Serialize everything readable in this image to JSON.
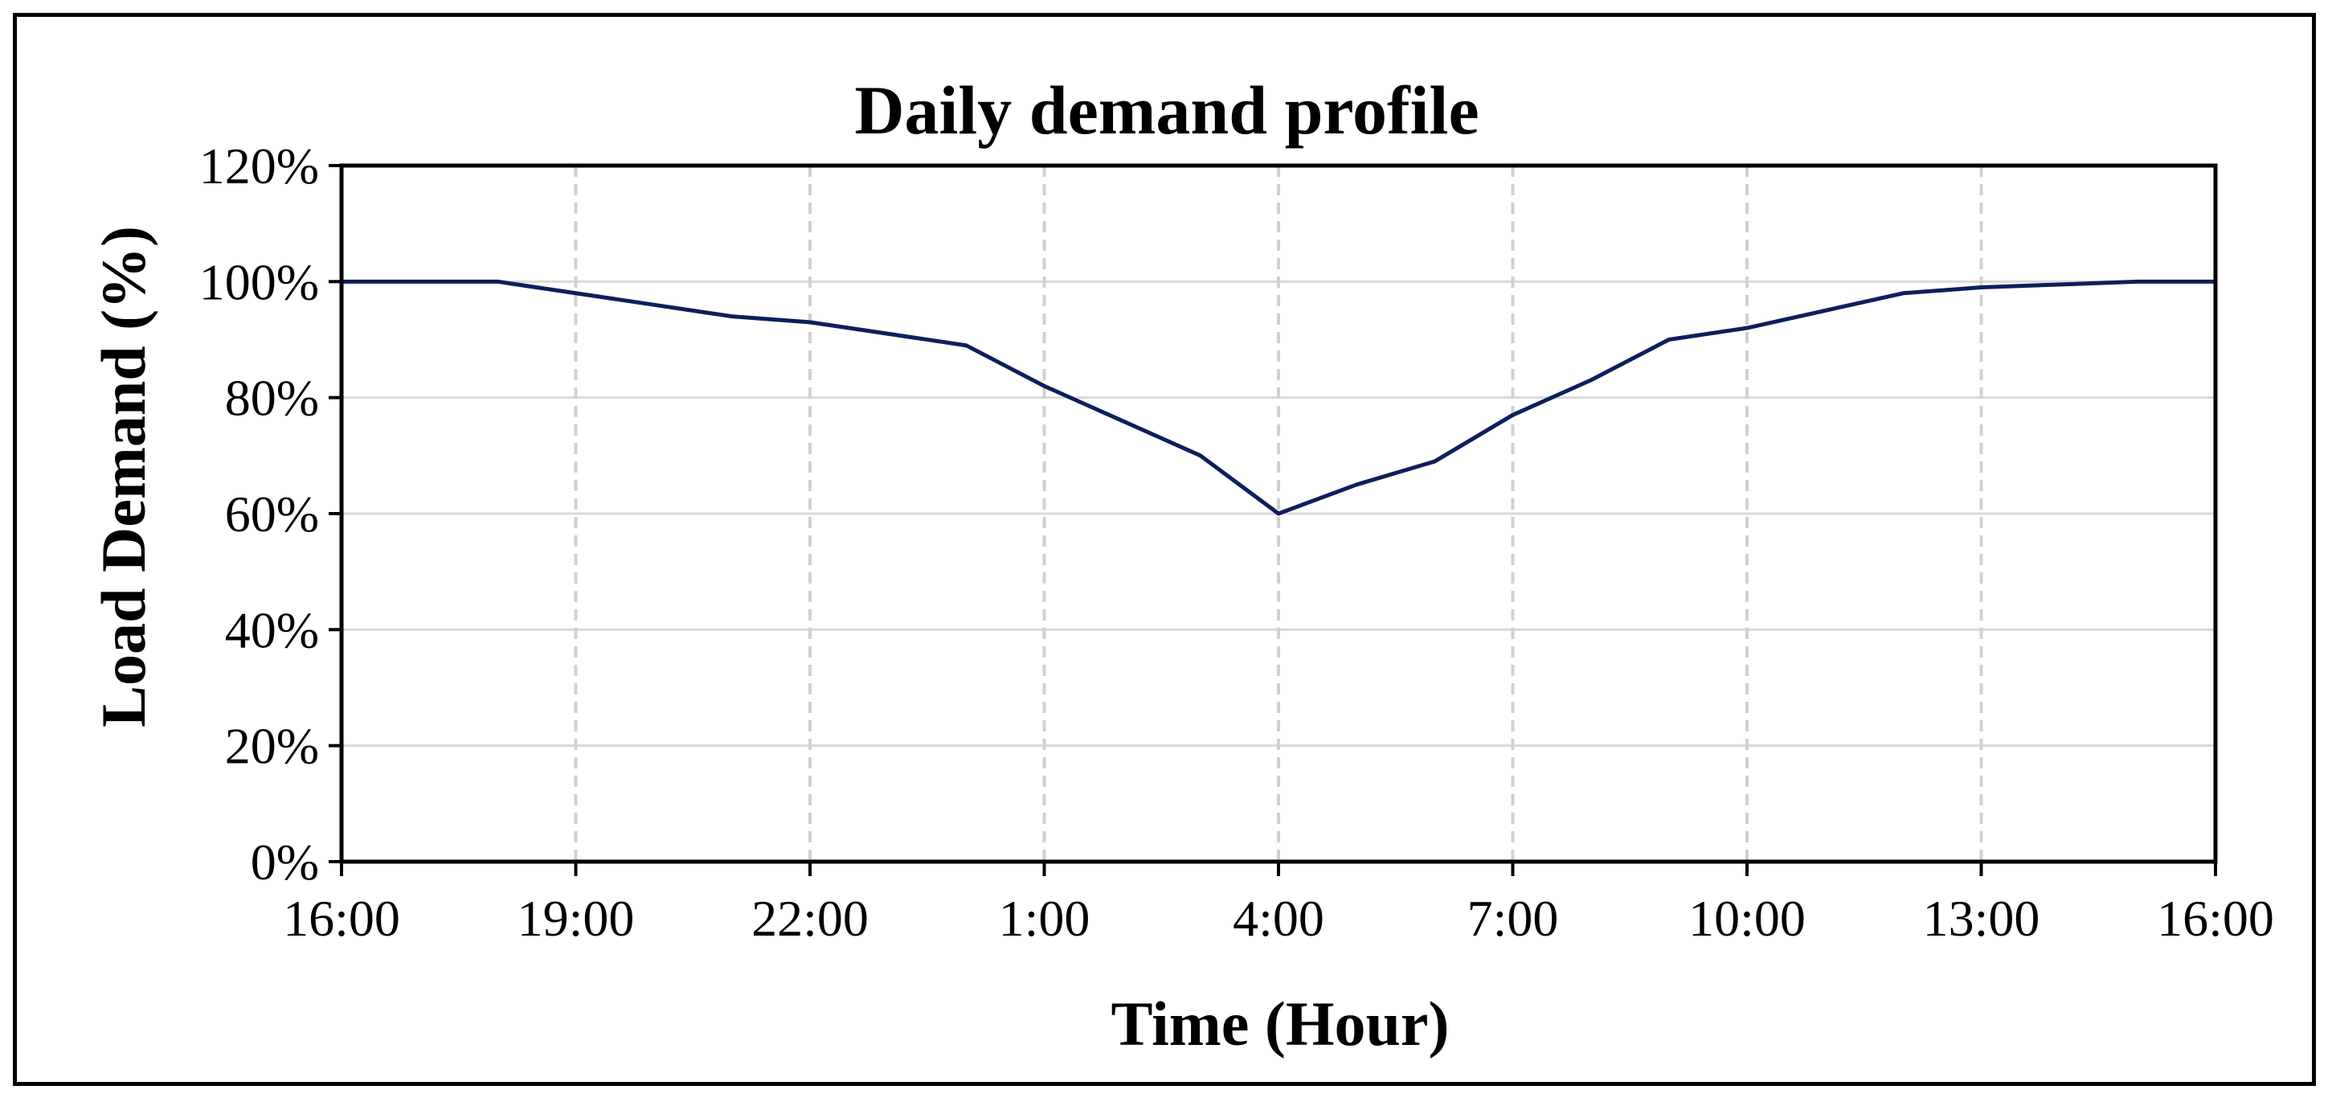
{
  "chart_data": {
    "type": "line",
    "title": "Daily demand profile",
    "xlabel": "Time (Hour)",
    "ylabel": "Load Demand (%)",
    "x_tick_labels": [
      "16:00",
      "19:00",
      "22:00",
      "1:00",
      "4:00",
      "7:00",
      "10:00",
      "13:00",
      "16:00"
    ],
    "y_tick_labels": [
      "0%",
      "20%",
      "40%",
      "60%",
      "80%",
      "100%",
      "120%"
    ],
    "ylim": [
      0,
      120
    ],
    "y_ticks": [
      0,
      20,
      40,
      60,
      80,
      100,
      120
    ],
    "x_hours": [
      0,
      1,
      2,
      3,
      4,
      5,
      6,
      7,
      8,
      9,
      10,
      11,
      12,
      13,
      14,
      15,
      16,
      17,
      18,
      19,
      20,
      21,
      22,
      23,
      24
    ],
    "series": [
      {
        "values": [
          100,
          100,
          100,
          98,
          96,
          94,
          93,
          91,
          89,
          82,
          76,
          70,
          60,
          65,
          69,
          77,
          83,
          90,
          92,
          95,
          98,
          99,
          99.5,
          100,
          100
        ]
      }
    ],
    "grid": {
      "horizontal": "solid",
      "vertical": "dashed"
    },
    "colors": {
      "line": "#0d1f5c",
      "grid_h": "#d9d9d9",
      "grid_v": "#d0d0d0",
      "axis": "#000000"
    }
  }
}
